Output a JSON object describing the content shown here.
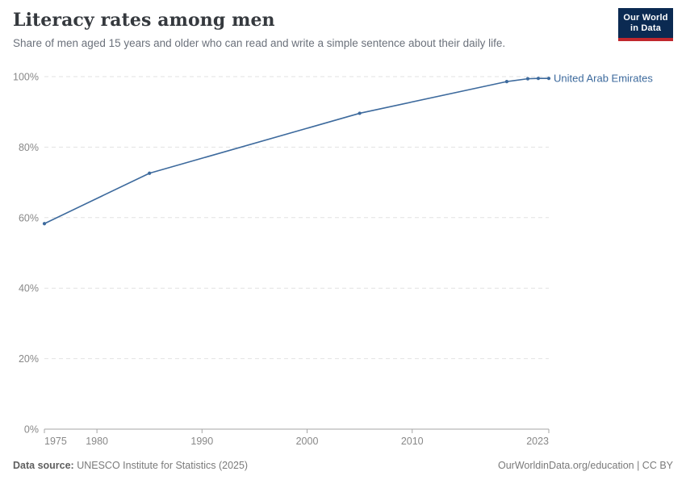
{
  "header": {
    "title": "Literacy rates among men",
    "subtitle": "Share of men aged 15 years and older who can read and write a simple sentence about their daily life.",
    "logo": {
      "line1": "Our World",
      "line2": "in Data"
    }
  },
  "chart_data": {
    "type": "line",
    "title": "Literacy rates among men",
    "series": [
      {
        "name": "United Arab Emirates",
        "color": "#3d6a9d",
        "x": [
          1975,
          1985,
          2005,
          2019,
          2021,
          2022,
          2023
        ],
        "values": [
          58.3,
          72.6,
          89.6,
          98.6,
          99.4,
          99.5,
          99.5
        ]
      }
    ],
    "entity_label": "United Arab Emirates",
    "x_ticks": [
      "1975",
      "1980",
      "1990",
      "2000",
      "2010",
      "2023"
    ],
    "y_ticks": [
      "0%",
      "20%",
      "40%",
      "60%",
      "80%",
      "100%"
    ],
    "xlim": [
      1975,
      2023
    ],
    "ylim": [
      0,
      100
    ],
    "grid": "horizontal-dashed",
    "legend_position": "right-of-line"
  },
  "footer": {
    "source_label": "Data source:",
    "source_text": " UNESCO Institute for Statistics (2025)",
    "right_text": "OurWorldinData.org/education | CC BY"
  },
  "colors": {
    "accent_line": "#3d6a9d",
    "gridline": "#e2e2e2",
    "axis": "#a5a5a5",
    "tick_label": "#888888",
    "logo_bg": "#0b2a52",
    "logo_bar": "#c0272d"
  }
}
